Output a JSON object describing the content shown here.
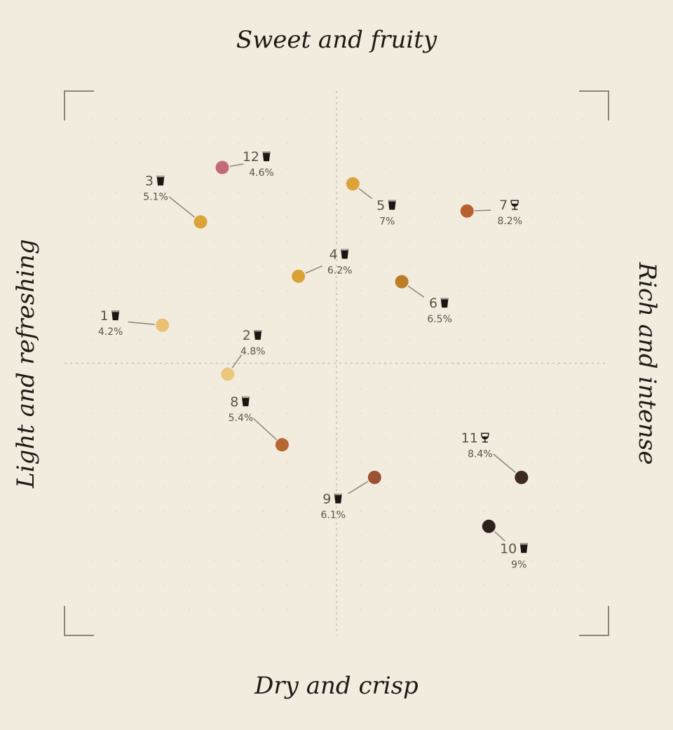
{
  "chart_data": {
    "type": "scatter",
    "axis_labels": {
      "top": "Sweet and fruity",
      "bottom": "Dry and crisp",
      "left": "Light and refreshing",
      "right": "Rich and intense"
    },
    "xlim": [
      -1,
      1
    ],
    "ylim": [
      -1,
      1
    ],
    "grid": "dotted",
    "points": [
      {
        "id": "1",
        "x": -0.64,
        "y": 0.14,
        "abv": "4.2%",
        "glass": "pint",
        "color": "#e8c272"
      },
      {
        "id": "2",
        "x": -0.4,
        "y": -0.04,
        "abv": "4.8%",
        "glass": "pint",
        "color": "#ebc87d"
      },
      {
        "id": "3",
        "x": -0.5,
        "y": 0.52,
        "abv": "5.1%",
        "glass": "pint",
        "color": "#dba438"
      },
      {
        "id": "4",
        "x": -0.14,
        "y": 0.32,
        "abv": "6.2%",
        "glass": "pint",
        "color": "#d9a236"
      },
      {
        "id": "5",
        "x": 0.06,
        "y": 0.66,
        "abv": "7%",
        "glass": "pint",
        "color": "#dea23a"
      },
      {
        "id": "6",
        "x": 0.24,
        "y": 0.3,
        "abv": "6.5%",
        "glass": "pint",
        "color": "#bb7d25"
      },
      {
        "id": "7",
        "x": 0.48,
        "y": 0.56,
        "abv": "8.2%",
        "glass": "goblet",
        "color": "#b8602e"
      },
      {
        "id": "8",
        "x": -0.2,
        "y": -0.3,
        "abv": "5.4%",
        "glass": "pint",
        "color": "#b86733"
      },
      {
        "id": "9",
        "x": 0.14,
        "y": -0.42,
        "abv": "6.1%",
        "glass": "pint",
        "color": "#9b5230"
      },
      {
        "id": "10",
        "x": 0.56,
        "y": -0.6,
        "abv": "9%",
        "glass": "pint",
        "color": "#2e211c"
      },
      {
        "id": "11",
        "x": 0.68,
        "y": -0.42,
        "abv": "8.4%",
        "glass": "goblet",
        "color": "#3d2a22"
      },
      {
        "id": "12",
        "x": -0.42,
        "y": 0.72,
        "abv": "4.6%",
        "glass": "pint",
        "color": "#c4697a"
      }
    ]
  }
}
